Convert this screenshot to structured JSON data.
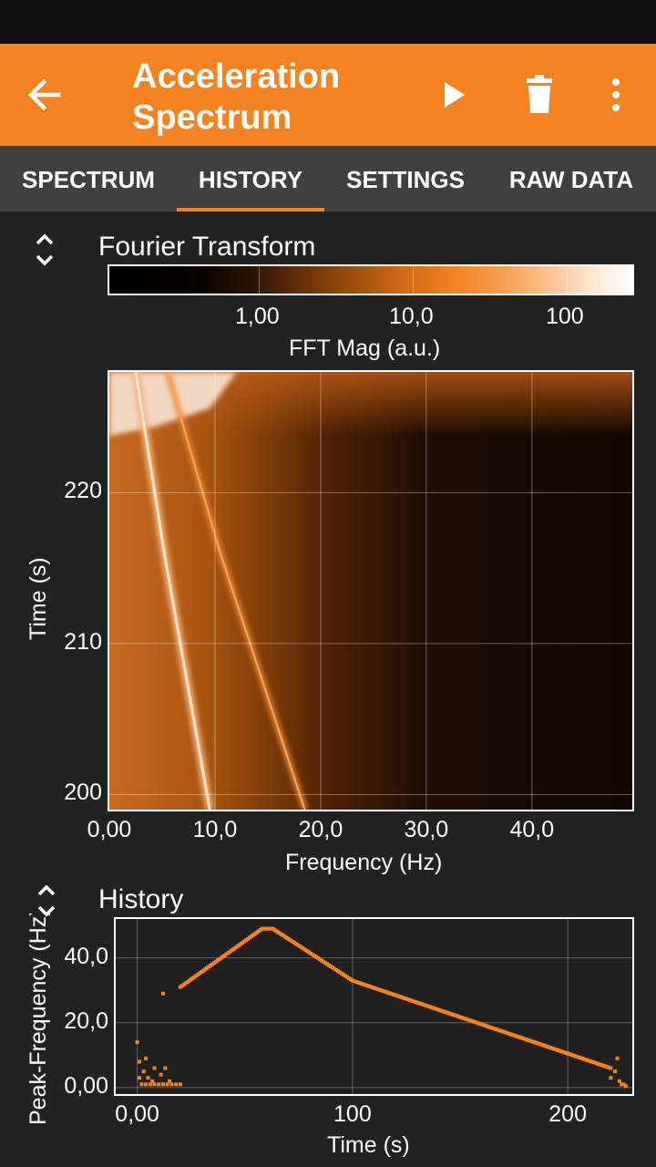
{
  "appbar": {
    "title_line1": "Acceleration",
    "title_line2": "Spectrum",
    "back_icon": "arrow-left-icon",
    "play_icon": "play-icon",
    "delete_icon": "trash-icon",
    "more_icon": "more-vert-icon"
  },
  "colors": {
    "accent": "#f58220",
    "background": "#222222",
    "tab_bar": "#404040",
    "status_bar": "#101010"
  },
  "tabs": [
    {
      "label": "SPECTRUM",
      "active": false
    },
    {
      "label": "HISTORY",
      "active": true
    },
    {
      "label": "SETTINGS",
      "active": false
    },
    {
      "label": "RAW DATA",
      "active": false
    }
  ],
  "chart_data": [
    {
      "type": "heatmap",
      "title": "Fourier Transform",
      "colorbar": {
        "label": "FFT Mag (a.u.)",
        "ticks": [
          "1,00",
          "10,0",
          "100"
        ],
        "scale": "log"
      },
      "xlabel": "Frequency (Hz)",
      "ylabel": "Time (s)",
      "xlim": [
        0,
        49.5
      ],
      "ylim": [
        199,
        228
      ],
      "xticks": [
        "0,00",
        "10,0",
        "20,0",
        "30,0",
        "40,0"
      ],
      "yticks": [
        "200",
        "210",
        "220"
      ],
      "grid": true,
      "ridges": [
        {
          "name": "peak",
          "points": [
            [
              9.5,
              199
            ],
            [
              5.2,
              216
            ],
            [
              2.5,
              228
            ]
          ]
        },
        {
          "name": "harmonic",
          "points": [
            [
              18.5,
              199
            ],
            [
              10.5,
              216
            ],
            [
              5.5,
              228
            ]
          ]
        }
      ]
    },
    {
      "type": "scatter",
      "title": "History",
      "xlabel": "Time (s)",
      "ylabel": "Peak-Frequency (Hz)",
      "xlim": [
        -10,
        230
      ],
      "ylim": [
        -2,
        52
      ],
      "xticks": [
        "0,00",
        "100",
        "200"
      ],
      "yticks": [
        "0,00",
        "20,0",
        "40,0"
      ],
      "grid": true,
      "segments": [
        {
          "from": [
            20,
            31
          ],
          "to": [
            58,
            49
          ]
        },
        {
          "from": [
            58,
            49
          ],
          "to": [
            63,
            49
          ]
        },
        {
          "from": [
            63,
            49
          ],
          "to": [
            100,
            33
          ]
        },
        {
          "from": [
            100,
            33
          ],
          "to": [
            220,
            6
          ]
        }
      ],
      "scattered": [
        [
          0,
          14
        ],
        [
          1,
          8
        ],
        [
          1,
          3
        ],
        [
          2,
          1
        ],
        [
          3,
          5
        ],
        [
          4,
          9
        ],
        [
          4,
          1
        ],
        [
          5,
          3
        ],
        [
          6,
          1
        ],
        [
          7,
          2
        ],
        [
          8,
          6
        ],
        [
          8,
          1
        ],
        [
          10,
          1
        ],
        [
          11,
          4
        ],
        [
          12,
          1
        ],
        [
          13,
          6
        ],
        [
          14,
          1
        ],
        [
          15,
          2
        ],
        [
          16,
          1
        ],
        [
          18,
          1
        ],
        [
          20,
          1
        ],
        [
          12,
          29
        ],
        [
          220,
          3
        ],
        [
          222,
          5
        ],
        [
          223,
          9
        ],
        [
          224,
          2
        ],
        [
          225,
          1
        ],
        [
          226,
          1
        ],
        [
          227,
          0.5
        ]
      ]
    }
  ]
}
